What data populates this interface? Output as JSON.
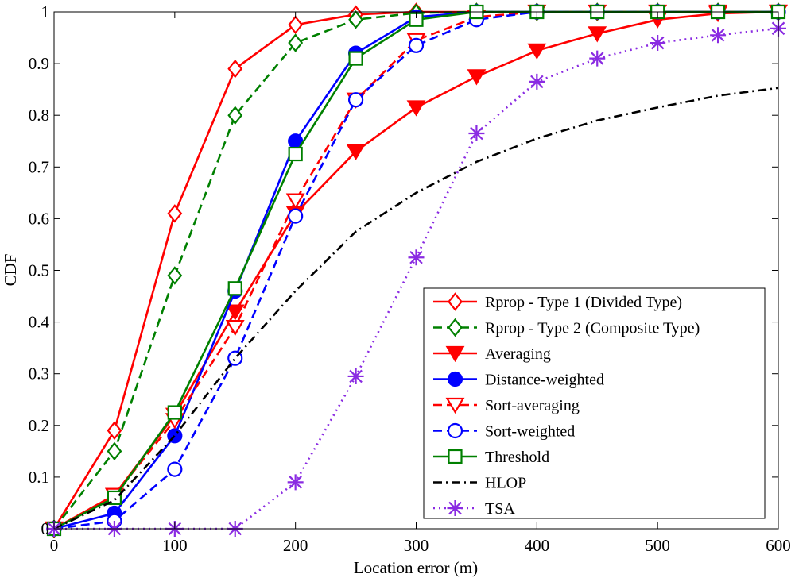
{
  "chart_data": {
    "type": "line",
    "title": "",
    "xlabel": "Location error (m)",
    "ylabel": "CDF",
    "xlim": [
      0,
      600
    ],
    "ylim": [
      0,
      1
    ],
    "xticks": [
      0,
      100,
      200,
      300,
      400,
      500,
      600
    ],
    "yticks": [
      0,
      0.1,
      0.2,
      0.3,
      0.4,
      0.5,
      0.6,
      0.7,
      0.8,
      0.9,
      1
    ],
    "xtick_labels": [
      "0",
      "100",
      "200",
      "300",
      "400",
      "500",
      "600"
    ],
    "ytick_labels": [
      "0",
      "0.1",
      "0.2",
      "0.3",
      "0.4",
      "0.5",
      "0.6",
      "0.7",
      "0.8",
      "0.9",
      "1"
    ],
    "grid": false,
    "legend_position": "bottom-right",
    "series": [
      {
        "name": "Rprop - Type 1 (Divided Type)",
        "color": "#ff0000",
        "line": "solid",
        "marker": "diamond-open",
        "x": [
          0,
          50,
          100,
          150,
          200,
          250,
          300,
          350,
          400,
          450,
          500,
          550,
          600
        ],
        "y": [
          0,
          0.19,
          0.61,
          0.89,
          0.975,
          0.995,
          1,
          1,
          1,
          1,
          1,
          1,
          1
        ]
      },
      {
        "name": "Rprop - Type 2 (Composite Type)",
        "color": "#008000",
        "line": "dashed",
        "marker": "diamond-open",
        "x": [
          0,
          50,
          100,
          150,
          200,
          250,
          300,
          350,
          400,
          450,
          500,
          550,
          600
        ],
        "y": [
          0,
          0.15,
          0.49,
          0.8,
          0.94,
          0.985,
          0.998,
          1,
          1,
          1,
          1,
          1,
          1
        ]
      },
      {
        "name": "Averaging",
        "color": "#ff0000",
        "line": "solid",
        "marker": "triangle-down-filled",
        "x": [
          0,
          50,
          100,
          150,
          200,
          250,
          300,
          350,
          400,
          450,
          500,
          550,
          600
        ],
        "y": [
          0,
          0.065,
          0.22,
          0.42,
          0.61,
          0.73,
          0.815,
          0.875,
          0.925,
          0.958,
          0.985,
          0.997,
          1
        ]
      },
      {
        "name": "Distance-weighted",
        "color": "#0000ff",
        "line": "solid",
        "marker": "circle-filled",
        "x": [
          0,
          50,
          100,
          150,
          200,
          250,
          300,
          350,
          400,
          450,
          500,
          550,
          600
        ],
        "y": [
          0,
          0.03,
          0.18,
          0.46,
          0.75,
          0.92,
          0.99,
          1,
          1,
          1,
          1,
          1,
          1
        ]
      },
      {
        "name": "Sort-averaging",
        "color": "#ff0000",
        "line": "dashed",
        "marker": "triangle-down-open",
        "x": [
          0,
          50,
          100,
          150,
          200,
          250,
          300,
          350,
          400,
          450,
          500,
          550,
          600
        ],
        "y": [
          0,
          0.065,
          0.21,
          0.39,
          0.635,
          0.83,
          0.945,
          0.99,
          1,
          1,
          1,
          1,
          1
        ]
      },
      {
        "name": "Sort-weighted",
        "color": "#0000ff",
        "line": "dashed",
        "marker": "circle-open",
        "x": [
          0,
          50,
          100,
          150,
          200,
          250,
          300,
          350,
          400,
          450,
          500,
          550,
          600
        ],
        "y": [
          0,
          0.015,
          0.115,
          0.33,
          0.605,
          0.83,
          0.935,
          0.985,
          1,
          1,
          1,
          1,
          1
        ]
      },
      {
        "name": "Threshold",
        "color": "#008000",
        "line": "solid",
        "marker": "square-open",
        "x": [
          0,
          50,
          100,
          150,
          200,
          250,
          300,
          350,
          400,
          450,
          500,
          550,
          600
        ],
        "y": [
          0,
          0.06,
          0.225,
          0.465,
          0.725,
          0.91,
          0.985,
          1,
          1,
          1,
          1,
          1,
          1
        ]
      },
      {
        "name": "HLOP",
        "color": "#000000",
        "line": "dashdot",
        "marker": "none",
        "x": [
          0,
          50,
          100,
          150,
          200,
          250,
          300,
          350,
          400,
          450,
          500,
          550,
          600
        ],
        "y": [
          0,
          0.055,
          0.18,
          0.33,
          0.46,
          0.575,
          0.65,
          0.71,
          0.755,
          0.79,
          0.815,
          0.838,
          0.853
        ]
      },
      {
        "name": "TSA",
        "color": "#8a2be2",
        "line": "dotted",
        "marker": "asterisk",
        "x": [
          0,
          50,
          100,
          150,
          200,
          250,
          300,
          350,
          400,
          450,
          500,
          550,
          600
        ],
        "y": [
          0,
          0,
          0,
          0,
          0.09,
          0.295,
          0.525,
          0.765,
          0.865,
          0.91,
          0.94,
          0.955,
          0.968
        ]
      }
    ]
  }
}
